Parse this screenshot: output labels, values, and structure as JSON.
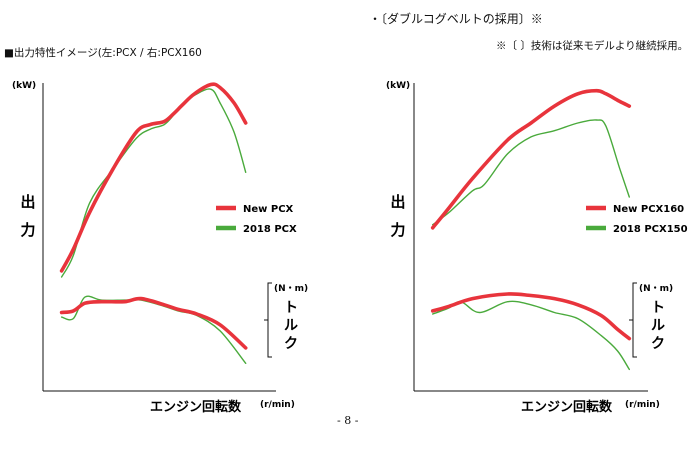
{
  "header": {
    "heading": "・〔ダブルコグベルトの採用〕※",
    "note": "※〔 〕技術は従来モデルより継続採用。",
    "caption": "■出力特性イメージ(左:PCX / 右:PCX160",
    "page_number": "- 8 -"
  },
  "colors": {
    "new_model": "#e8343c",
    "old_model": "#4aaa3c",
    "axis": "#111111"
  },
  "chart_data": [
    {
      "type": "line",
      "panel": "left",
      "title": "出力特性イメージ PCX",
      "power_unit": "(kW)",
      "torque_unit": "(N・m)",
      "power_label": "出力",
      "torque_label": "トルク",
      "xlabel": "エンジン回転数",
      "xunit": "(r/min)",
      "xlim": [
        0,
        100
      ],
      "ylim": [
        0,
        100
      ],
      "power_series": [
        {
          "name": "New PCX",
          "color": "#e8343c",
          "x": [
            8,
            13,
            20,
            30,
            40,
            46,
            52,
            56,
            60,
            65,
            72,
            76,
            82,
            87
          ],
          "values": [
            39.0,
            46.0,
            58.0,
            72.0,
            84.0,
            86.5,
            87.5,
            90.0,
            93.0,
            96.5,
            99.5,
            98.5,
            93.5,
            87.0
          ]
        },
        {
          "name": "2018 PCX",
          "color": "#4aaa3c",
          "x": [
            8,
            13,
            20,
            30,
            40,
            46,
            52,
            56,
            60,
            65,
            72,
            76,
            82,
            87
          ],
          "values": [
            37.0,
            44.0,
            61.0,
            72.0,
            82.0,
            85.0,
            86.5,
            89.5,
            93.0,
            96.0,
            98.0,
            93.5,
            84.0,
            71.0
          ]
        }
      ],
      "torque_series": [
        {
          "name": "New PCX",
          "color": "#e8343c",
          "x": [
            8,
            13,
            18,
            25,
            35,
            42,
            52,
            58,
            66,
            76,
            87
          ],
          "values": [
            25.5,
            26.0,
            28.5,
            29.0,
            29.0,
            30.0,
            28.0,
            26.5,
            25.0,
            21.5,
            14.0
          ]
        },
        {
          "name": "2018 PCX",
          "color": "#4aaa3c",
          "x": [
            8,
            13,
            18,
            25,
            35,
            42,
            52,
            58,
            66,
            76,
            87
          ],
          "values": [
            24.0,
            23.5,
            30.5,
            29.5,
            29.5,
            29.5,
            27.5,
            26.0,
            24.5,
            19.5,
            9.0
          ]
        }
      ]
    },
    {
      "type": "line",
      "panel": "right",
      "title": "出力特性イメージ PCX160",
      "power_unit": "(kW)",
      "torque_unit": "(N・m)",
      "power_label": "出力",
      "torque_label": "トルク",
      "xlabel": "エンジン回転数",
      "xunit": "(r/min)",
      "xlim": [
        0,
        100
      ],
      "ylim": [
        0,
        100
      ],
      "power_series": [
        {
          "name": "New PCX160",
          "color": "#e8343c",
          "x": [
            8,
            15,
            25,
            40,
            50,
            60,
            70,
            78,
            82,
            88,
            92
          ],
          "values": [
            53.0,
            59.5,
            69.0,
            81.5,
            87.0,
            92.5,
            96.5,
            97.5,
            96.5,
            94.0,
            92.5
          ]
        },
        {
          "name": "2018 PCX150",
          "color": "#4aaa3c",
          "x": [
            8,
            15,
            25,
            30,
            40,
            50,
            60,
            70,
            78,
            82,
            88,
            92
          ],
          "values": [
            54.0,
            58.0,
            65.0,
            67.0,
            77.0,
            82.5,
            84.5,
            87.0,
            88.0,
            86.0,
            72.0,
            63.0
          ]
        }
      ],
      "torque_series": [
        {
          "name": "New PCX160",
          "color": "#e8343c",
          "x": [
            8,
            15,
            25,
            40,
            50,
            60,
            70,
            80,
            87,
            92
          ],
          "values": [
            26.0,
            27.5,
            30.0,
            31.5,
            31.0,
            30.0,
            28.0,
            24.5,
            20.0,
            17.0
          ]
        },
        {
          "name": "2018 PCX150",
          "color": "#4aaa3c",
          "x": [
            8,
            15,
            20,
            28,
            40,
            50,
            60,
            70,
            80,
            87,
            92
          ],
          "values": [
            25.0,
            27.0,
            29.0,
            25.5,
            29.0,
            28.0,
            25.5,
            23.5,
            18.0,
            13.0,
            7.0
          ]
        }
      ]
    }
  ]
}
